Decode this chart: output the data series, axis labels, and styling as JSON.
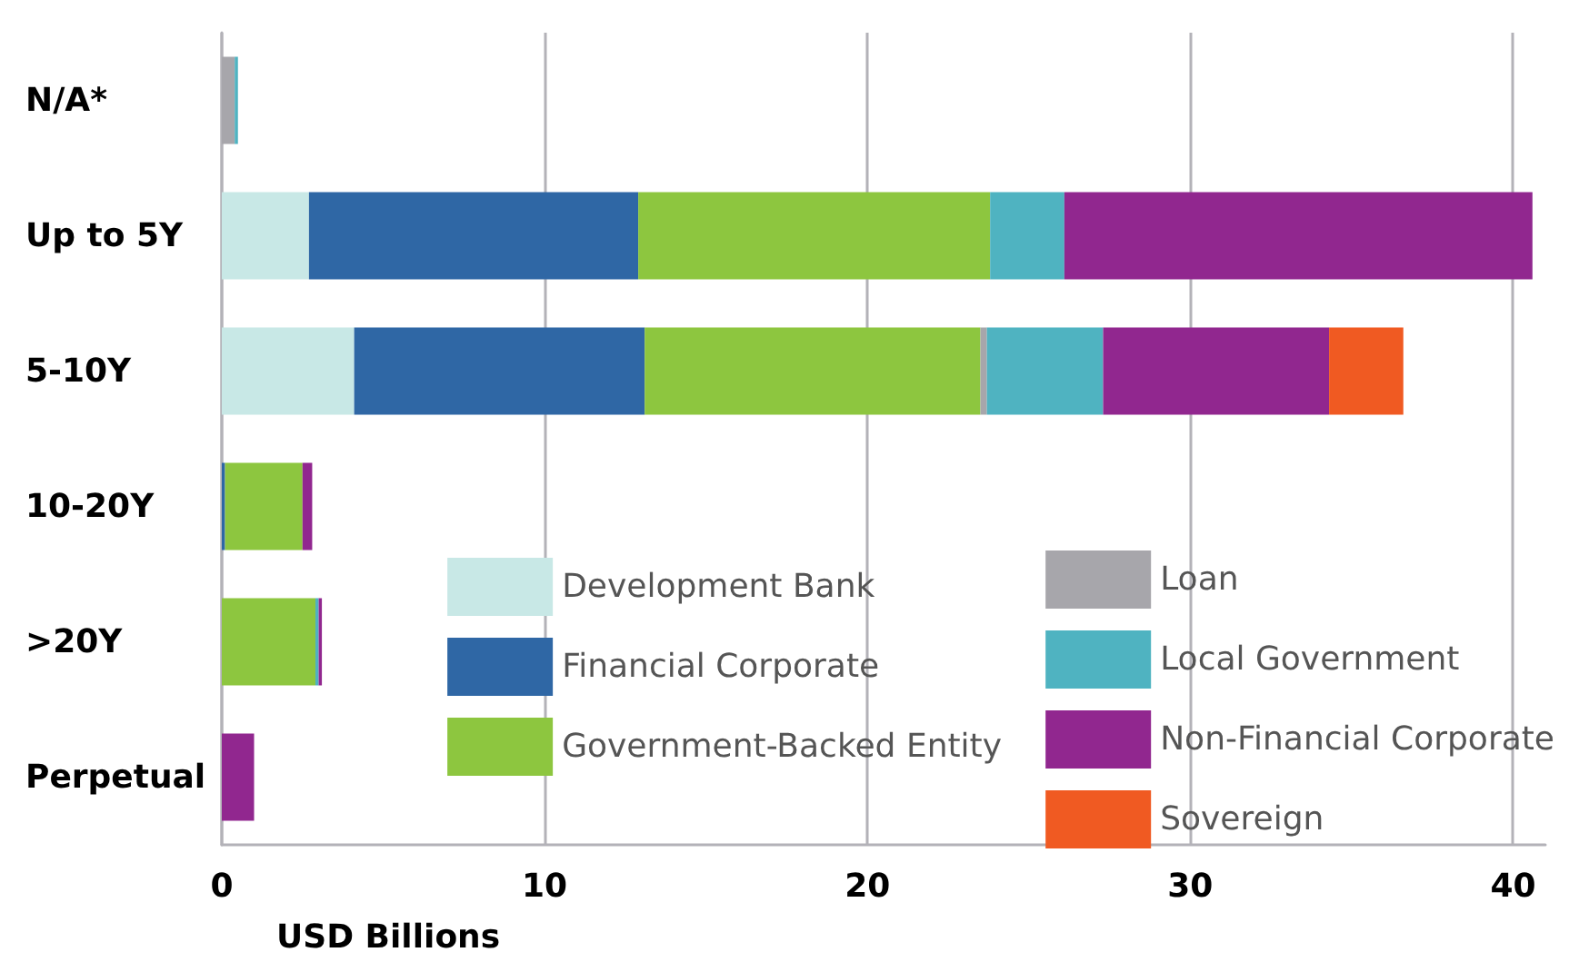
{
  "chart_data": {
    "type": "bar",
    "orientation": "horizontal",
    "stacked": true,
    "xlabel": "USD Billions",
    "categories": [
      "N/A*",
      "Up to 5Y",
      "5-10Y",
      "10-20Y",
      ">20Y",
      "Perpetual"
    ],
    "series": [
      {
        "name": "Development Bank",
        "color": "#c8e8e6",
        "values": [
          null,
          2.7,
          4.1,
          null,
          null,
          null
        ]
      },
      {
        "name": "Financial Corporate",
        "color": "#2f67a5",
        "values": [
          null,
          10.2,
          9.0,
          0.1,
          null,
          null
        ]
      },
      {
        "name": "Government-Backed Entity",
        "color": "#8dc63f",
        "values": [
          null,
          10.9,
          10.4,
          2.4,
          2.9,
          null
        ]
      },
      {
        "name": "Loan",
        "color": "#a7a6ab",
        "values": [
          0.4,
          null,
          0.2,
          null,
          null,
          null
        ]
      },
      {
        "name": "Local Government",
        "color": "#4fb3c1",
        "values": [
          0.1,
          2.3,
          3.6,
          null,
          0.1,
          null
        ]
      },
      {
        "name": "Non-Financial Corporate",
        "color": "#91278f",
        "values": [
          null,
          14.5,
          7.0,
          0.3,
          0.1,
          1.0
        ]
      },
      {
        "name": "Sovereign",
        "color": "#f05a22",
        "values": [
          null,
          null,
          2.3,
          null,
          null,
          null
        ]
      }
    ],
    "xlim": [
      0,
      41
    ],
    "xticks": [
      0,
      10,
      20,
      30,
      40
    ],
    "grid": "x",
    "legend": "bottom right"
  }
}
